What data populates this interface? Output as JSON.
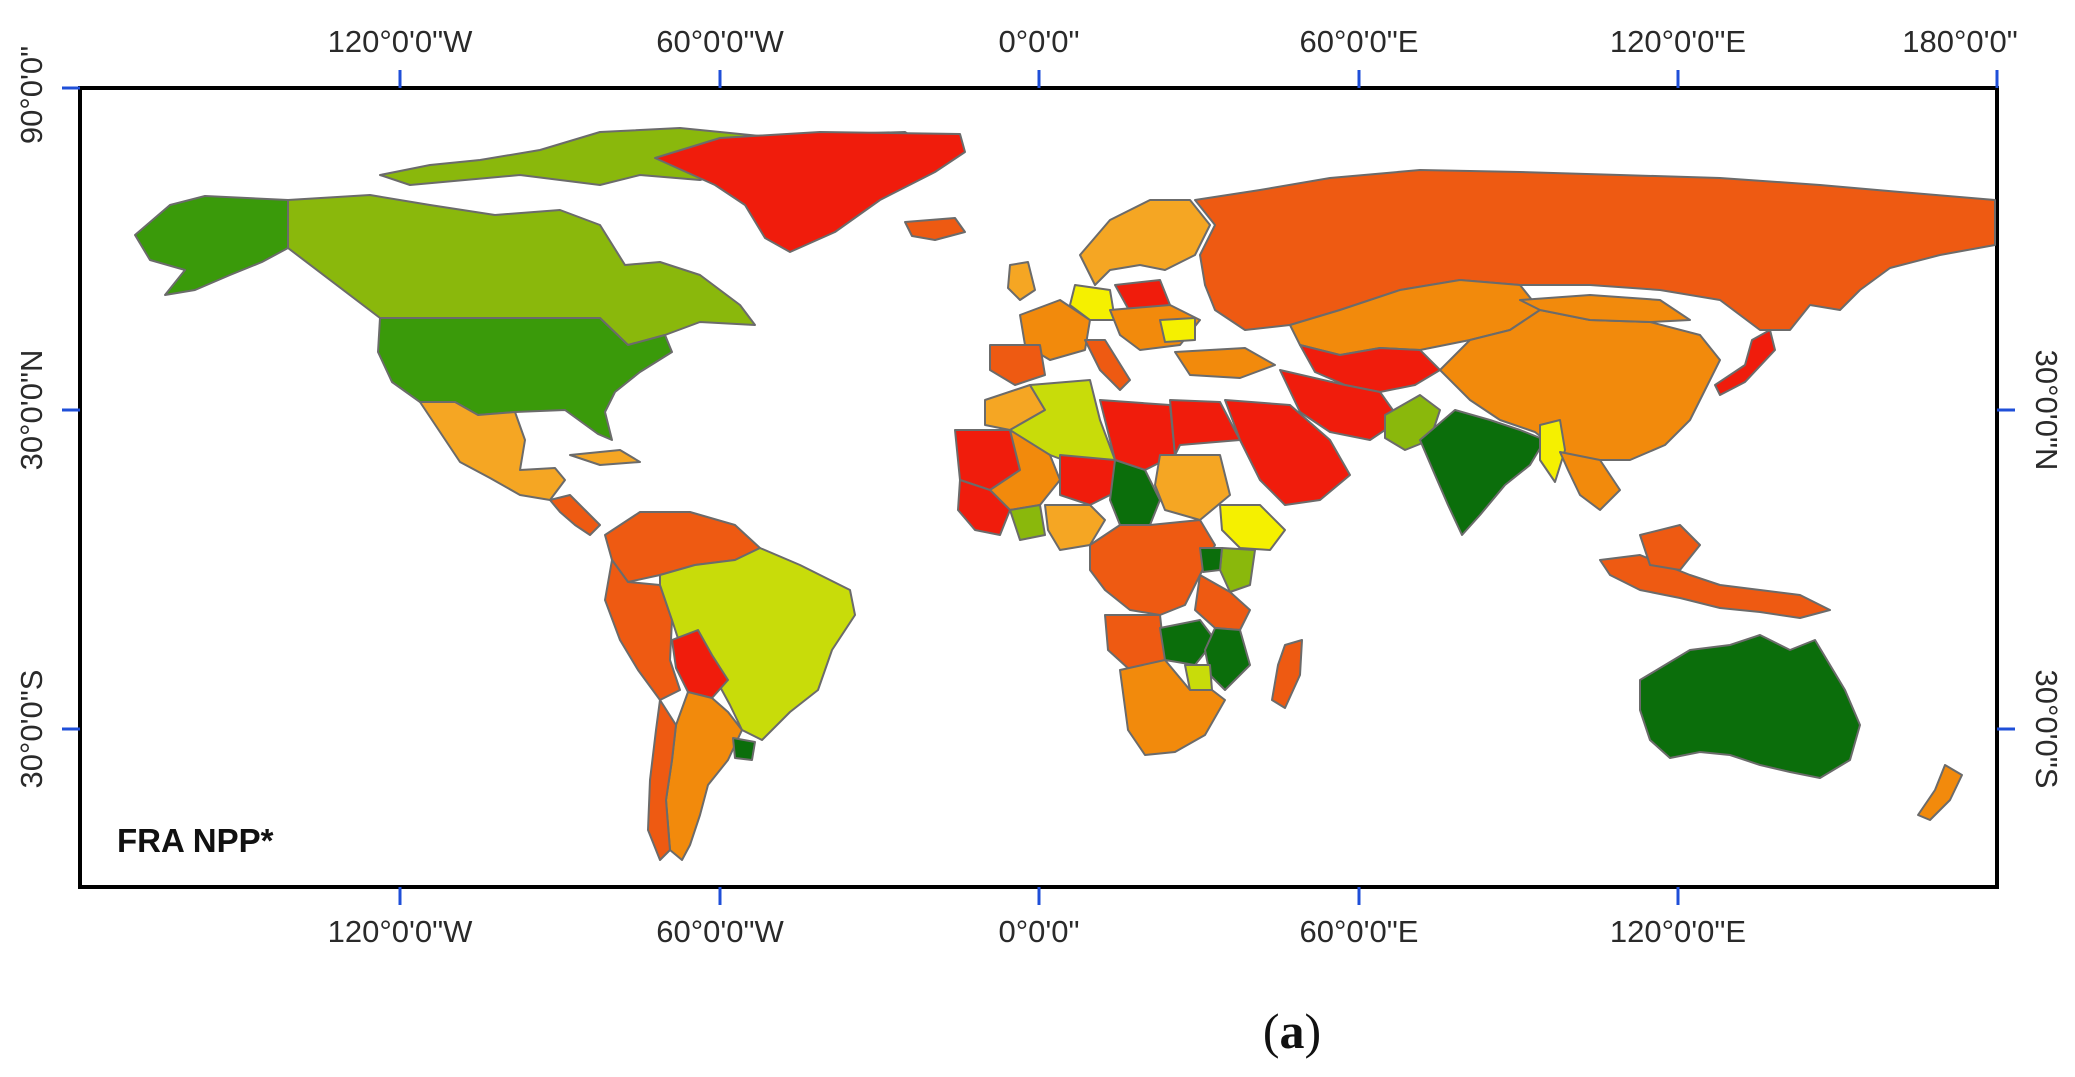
{
  "panel_label": "FRA NPP*",
  "caption": {
    "open": "(",
    "letter": "a",
    "close": ")"
  },
  "axes": {
    "top_labels": [
      "120°0'0\"W",
      "60°0'0\"W",
      "0°0'0\"",
      "60°0'0\"E",
      "120°0'0\"E",
      "180°0'0\""
    ],
    "bottom_labels": [
      "120°0'0\"W",
      "60°0'0\"W",
      "0°0'0\"",
      "60°0'0\"E",
      "120°0'0\"E"
    ],
    "left_labels": [
      "90°0'0\"",
      "30°0'0\"N",
      "30°0'0\"S"
    ],
    "right_labels": [
      "30°0'0\"N",
      "30°0'0\"S"
    ]
  },
  "colors": {
    "frame": "#000000",
    "tick": "#1f4fd8",
    "border": "#6b6b6b",
    "dark_green": "#0b6e0b",
    "green": "#3a9a0a",
    "yellow_green": "#8ab80c",
    "lime": "#c8dc0a",
    "yellow": "#f5f000",
    "light_orange": "#f5a623",
    "orange": "#f28a0c",
    "red_orange": "#ee5a12",
    "red": "#f01c0c"
  }
}
